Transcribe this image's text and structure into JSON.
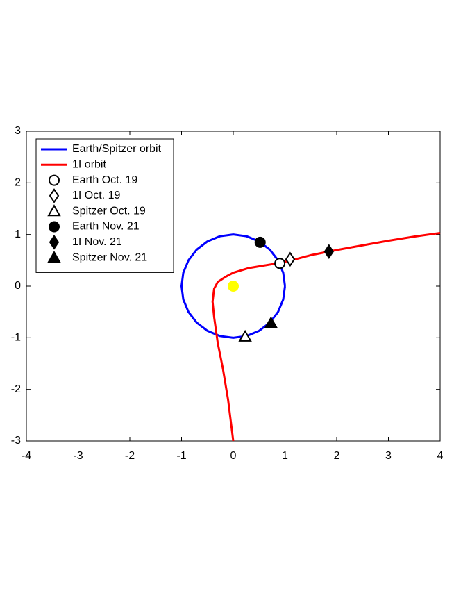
{
  "chart_data": {
    "type": "line",
    "xlim": [
      -4,
      4
    ],
    "ylim": [
      -3,
      3
    ],
    "xticks": [
      -4,
      -3,
      -2,
      -1,
      0,
      1,
      2,
      3,
      4
    ],
    "yticks": [
      -3,
      -2,
      -1,
      0,
      1,
      2,
      3
    ],
    "legend": "upper left",
    "series": [
      {
        "name": "Earth/Spitzer orbit",
        "color": "#0000ff",
        "x": [
          1,
          0.966,
          0.866,
          0.707,
          0.5,
          0.259,
          0,
          -0.259,
          -0.5,
          -0.707,
          -0.866,
          -0.966,
          -1,
          -0.966,
          -0.866,
          -0.707,
          -0.5,
          -0.259,
          0,
          0.259,
          0.5,
          0.707,
          0.866,
          0.966,
          1
        ],
        "y": [
          0,
          0.259,
          0.5,
          0.707,
          0.866,
          0.966,
          1,
          0.966,
          0.866,
          0.707,
          0.5,
          0.259,
          0,
          -0.259,
          -0.5,
          -0.707,
          -0.866,
          -0.966,
          -1,
          -0.966,
          -0.866,
          -0.707,
          -0.5,
          -0.259,
          0
        ]
      },
      {
        "name": "1I orbit",
        "color": "#ff0000",
        "x": [
          0,
          -0.1,
          -0.2,
          -0.3,
          -0.37,
          -0.4,
          -0.37,
          -0.3,
          -0.15,
          0,
          0.3,
          0.6,
          0.9,
          1.2,
          1.5,
          2,
          2.5,
          3,
          3.5,
          4
        ],
        "y": [
          -3,
          -2.2,
          -1.6,
          -1.1,
          -0.6,
          -0.3,
          -0.05,
          0.08,
          0.18,
          0.26,
          0.35,
          0.4,
          0.45,
          0.52,
          0.6,
          0.7,
          0.79,
          0.88,
          0.96,
          1.03
        ]
      },
      {
        "name": "Earth Oct. 19",
        "color": "#000000",
        "marker": "circle",
        "filled": false,
        "x": [
          0.9
        ],
        "y": [
          0.44
        ]
      },
      {
        "name": "1I Oct. 19",
        "color": "#000000",
        "marker": "diamond",
        "filled": false,
        "x": [
          1.1
        ],
        "y": [
          0.52
        ]
      },
      {
        "name": "Spitzer Oct. 19",
        "color": "#000000",
        "marker": "triangle",
        "filled": false,
        "x": [
          0.23
        ],
        "y": [
          -0.98
        ]
      },
      {
        "name": "Earth Nov. 21",
        "color": "#000000",
        "marker": "circle",
        "filled": true,
        "x": [
          0.52
        ],
        "y": [
          0.85
        ]
      },
      {
        "name": "1I Nov. 21",
        "color": "#000000",
        "marker": "diamond",
        "filled": true,
        "x": [
          1.85
        ],
        "y": [
          0.67
        ]
      },
      {
        "name": "Spitzer Nov. 21",
        "color": "#000000",
        "marker": "triangle",
        "filled": true,
        "x": [
          0.73
        ],
        "y": [
          -0.72
        ]
      },
      {
        "color": "#ffff00",
        "marker": "circle",
        "filled": true,
        "x": [
          0
        ],
        "y": [
          0
        ]
      }
    ]
  }
}
